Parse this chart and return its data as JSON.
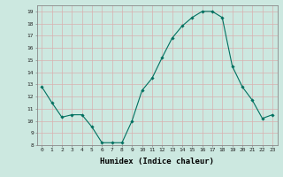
{
  "title": "",
  "xlabel": "Humidex (Indice chaleur)",
  "ylabel": "",
  "background_color": "#cce8e0",
  "grid_color": "#d8b0b0",
  "line_color": "#007060",
  "marker_color": "#007060",
  "ylim": [
    8,
    19.5
  ],
  "xlim": [
    -0.5,
    23.5
  ],
  "yticks": [
    8,
    9,
    10,
    11,
    12,
    13,
    14,
    15,
    16,
    17,
    18,
    19
  ],
  "xticks": [
    0,
    1,
    2,
    3,
    4,
    5,
    6,
    7,
    8,
    9,
    10,
    11,
    12,
    13,
    14,
    15,
    16,
    17,
    18,
    19,
    20,
    21,
    22,
    23
  ],
  "x": [
    0,
    1,
    2,
    3,
    4,
    5,
    6,
    7,
    8,
    9,
    10,
    11,
    12,
    13,
    14,
    15,
    16,
    17,
    18,
    19,
    20,
    21,
    22,
    23
  ],
  "y": [
    12.8,
    11.5,
    10.3,
    10.5,
    10.5,
    9.5,
    8.2,
    8.2,
    8.2,
    10.0,
    12.5,
    13.5,
    15.2,
    16.8,
    17.8,
    18.5,
    19.0,
    19.0,
    18.5,
    14.5,
    12.8,
    11.7,
    10.2,
    10.5
  ]
}
